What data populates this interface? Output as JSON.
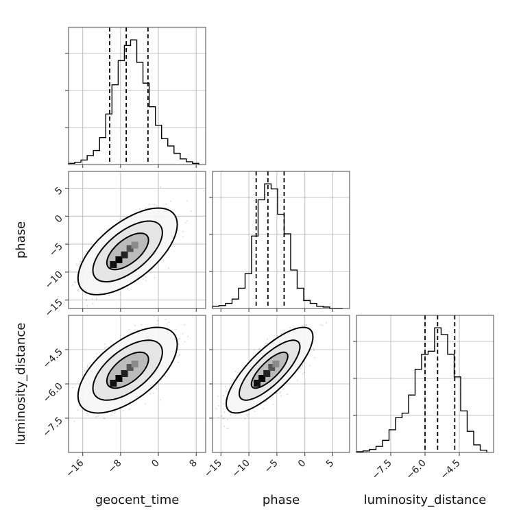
{
  "chart_data": {
    "type": "corner",
    "parameters": [
      "geocent_time",
      "phase",
      "luminosity_distance"
    ],
    "axis_labels": {
      "x": [
        "geocent_time",
        "phase",
        "luminosity_distance"
      ],
      "y": [
        "",
        "phase",
        "luminosity_distance"
      ]
    },
    "ranges": {
      "geocent_time": [
        -19,
        10
      ],
      "phase": [
        -16.5,
        8
      ],
      "luminosity_distance": [
        -9.0,
        -3.0
      ]
    },
    "ticks": {
      "geocent_time": [
        -16,
        -8,
        0,
        8
      ],
      "phase": [
        -15,
        -10,
        -5,
        0,
        5
      ],
      "luminosity_distance": [
        -7.5,
        -6.0,
        -4.5
      ]
    },
    "tick_labels": {
      "geocent_time": [
        "−16",
        "−8",
        "0",
        "8"
      ],
      "phase": [
        "−15",
        "−10",
        "−5",
        "0",
        "5"
      ],
      "luminosity_distance": [
        "−7.5",
        "−6.0",
        "−4.5"
      ]
    },
    "quantiles": {
      "geocent_time": [
        -10.3,
        -6.8,
        -2.2
      ],
      "phase": [
        -8.7,
        -6.6,
        -3.7
      ],
      "luminosity_distance": [
        -6.0,
        -5.45,
        -4.7
      ]
    },
    "histograms": {
      "geocent_time": [
        0.2,
        0.4,
        0.8,
        1.6,
        2.5,
        4.8,
        9.0,
        14.2,
        18.5,
        21.2,
        22.2,
        18.2,
        14.5,
        10.3,
        7.0,
        4.6,
        3.3,
        2.0,
        1.0,
        0.5,
        0.2
      ],
      "phase": [
        0.3,
        0.4,
        0.7,
        1.3,
        2.8,
        4.8,
        10.0,
        15.0,
        17.2,
        16.5,
        13.0,
        10.3,
        5.3,
        2.8,
        1.1,
        0.7,
        0.3,
        0.2,
        0.0,
        0.0
      ],
      "luminosity_distance": [
        0.1,
        0.2,
        0.4,
        0.8,
        1.6,
        3.0,
        4.6,
        5.2,
        7.6,
        11.0,
        13.0,
        13.4,
        16.5,
        15.6,
        13.0,
        10.0,
        5.5,
        2.8,
        1.0,
        0.3
      ]
    },
    "gaussian_2d": {
      "geocent_time": {
        "mean": -6.5,
        "sd": 4.2
      },
      "phase": {
        "mean": -6.3,
        "sd": 3.1
      },
      "luminosity_distance": {
        "mean": -5.4,
        "sd": 0.75
      },
      "correlations": {
        "phase|geocent_time": 0.62,
        "luminosity_distance|geocent_time": 0.6,
        "luminosity_distance|phase": 0.78
      }
    },
    "grid": true
  }
}
